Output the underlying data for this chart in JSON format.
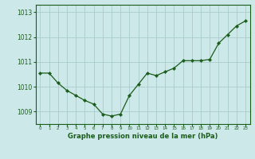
{
  "x": [
    0,
    1,
    2,
    3,
    4,
    5,
    6,
    7,
    8,
    9,
    10,
    11,
    12,
    13,
    14,
    15,
    16,
    17,
    18,
    19,
    20,
    21,
    22,
    23
  ],
  "y": [
    1010.55,
    1010.55,
    1010.15,
    1009.85,
    1009.65,
    1009.45,
    1009.3,
    1008.9,
    1008.82,
    1008.9,
    1009.65,
    1010.1,
    1010.55,
    1010.45,
    1010.6,
    1010.75,
    1011.05,
    1011.05,
    1011.05,
    1011.1,
    1011.75,
    1012.1,
    1012.45,
    1012.65
  ],
  "line_color": "#1a5c1a",
  "marker_color": "#1a5c1a",
  "bg_color": "#cce8e8",
  "grid_color": "#aacccc",
  "axis_label_color": "#1a5c1a",
  "title": "Graphe pression niveau de la mer (hPa)",
  "title_color": "#1a5c1a",
  "ylim_min": 1008.5,
  "ylim_max": 1013.3,
  "yticks": [
    1009,
    1010,
    1011,
    1012,
    1013
  ],
  "xtick_labels": [
    "0",
    "1",
    "2",
    "3",
    "4",
    "5",
    "6",
    "7",
    "8",
    "9",
    "10",
    "11",
    "12",
    "13",
    "14",
    "15",
    "16",
    "17",
    "18",
    "19",
    "20",
    "21",
    "22",
    "23"
  ]
}
